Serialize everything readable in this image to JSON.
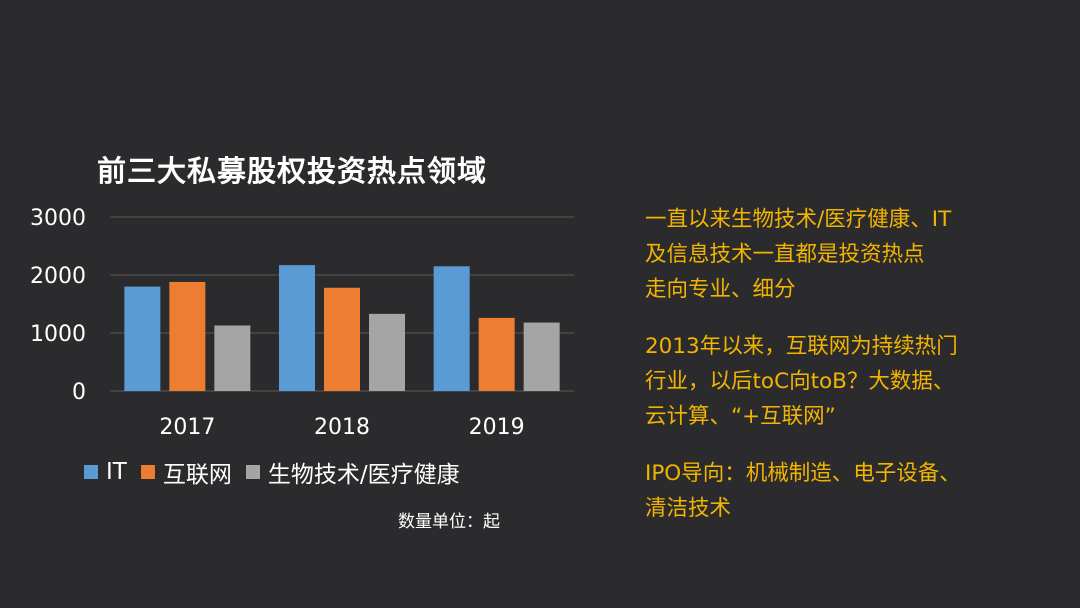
{
  "chart_data": {
    "type": "bar",
    "title": "前三大私募股权投资热点领域",
    "categories": [
      "2017",
      "2018",
      "2019"
    ],
    "series": [
      {
        "name": "IT",
        "color": "#5b9bd5",
        "values": [
          1800,
          2170,
          2150
        ]
      },
      {
        "name": "互联网",
        "color": "#ed7d31",
        "values": [
          1880,
          1780,
          1260
        ]
      },
      {
        "name": "生物技术/医疗健康",
        "color": "#a5a5a5",
        "values": [
          1130,
          1330,
          1180
        ]
      }
    ],
    "ylim": [
      0,
      3000
    ],
    "yticks": [
      0,
      1000,
      2000,
      3000
    ],
    "ytick_labels": [
      "0",
      "1000",
      "2000",
      "3000"
    ],
    "grid": true,
    "legend_position": "bottom",
    "xlabel": "",
    "ylabel": ""
  },
  "unit_note": "数量单位：起",
  "notes": [
    {
      "lines": [
        "一直以来生物技术/医疗健康、IT",
        "及信息技术一直都是投资热点",
        "走向专业、细分"
      ]
    },
    {
      "lines": [
        "2013年以来，互联网为持续热门",
        "行业，以后toC向toB？大数据、",
        "云计算、“+互联网”"
      ]
    },
    {
      "lines": [
        "IPO导向：机械制造、电子设备、",
        "清洁技术"
      ]
    }
  ],
  "colors": {
    "background": "#2b2b2d",
    "note_text": "#f2b400",
    "gridline": "#595959"
  }
}
